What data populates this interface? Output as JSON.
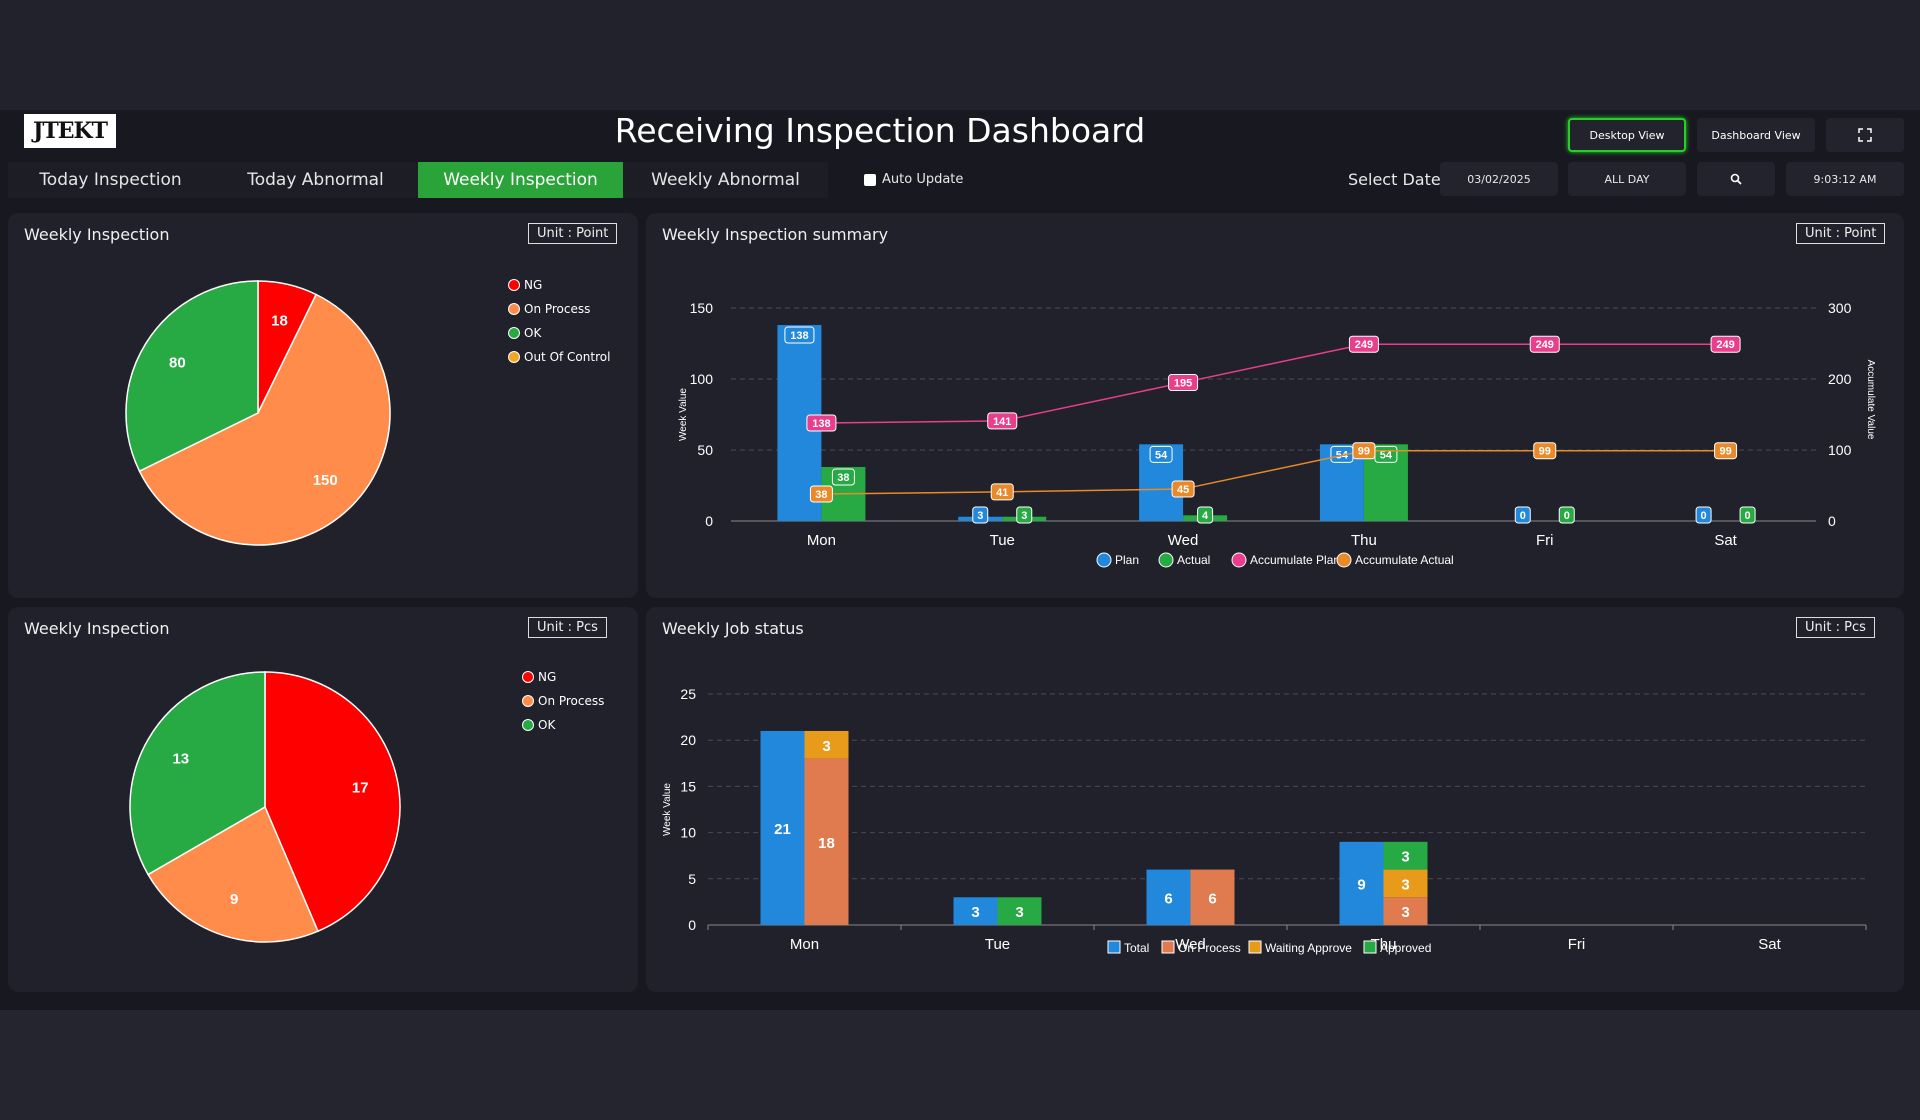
{
  "header": {
    "logo": "JTEKT",
    "title": "Receiving Inspection Dashboard",
    "desktop_view": "Desktop View",
    "dashboard_view": "Dashboard View",
    "fullscreen_icon": "fullscreen-icon"
  },
  "tabs": [
    "Today Inspection",
    "Today Abnormal",
    "Weekly Inspection",
    "Weekly Abnormal"
  ],
  "active_tab": 2,
  "auto_update": {
    "label": "Auto Update",
    "checked": false
  },
  "filters": {
    "select_date_label": "Select Date",
    "date": "03/02/2025",
    "shift": "ALL DAY",
    "search_icon": "search-icon",
    "time": "9:03:12 AM"
  },
  "colors": {
    "ng": "#ff0000",
    "on_process": "#ff8c4a",
    "ok": "#27a944",
    "out_of_control": "#f5a623",
    "plan": "#2188dc",
    "actual": "#27a944",
    "acc_plan": "#e83e8c",
    "acc_actual": "#e8892a",
    "job_on_process": "#e07b4f",
    "waiting": "#e89a1a",
    "active_tab": "#2aa339"
  },
  "panels": {
    "pie_point": {
      "title": "Weekly Inspection",
      "unit": "Unit : Point"
    },
    "summary": {
      "title": "Weekly Inspection summary",
      "unit": "Unit : Point"
    },
    "pie_pcs": {
      "title": "Weekly Inspection",
      "unit": "Unit : Pcs"
    },
    "job": {
      "title": "Weekly Job status",
      "unit": "Unit : Pcs"
    }
  },
  "chart_data": [
    {
      "type": "pie",
      "labels": [
        "NG",
        "On Process",
        "OK",
        "Out Of Control"
      ],
      "values": [
        18,
        150,
        80,
        0
      ]
    },
    {
      "type": "bar",
      "categories": [
        "Mon",
        "Tue",
        "Wed",
        "Thu",
        "Fri",
        "Sat"
      ],
      "series": [
        {
          "name": "Plan",
          "kind": "bar",
          "axis": "left",
          "values": [
            138,
            3,
            54,
            54,
            0,
            0
          ]
        },
        {
          "name": "Actual",
          "kind": "bar",
          "axis": "left",
          "values": [
            38,
            3,
            4,
            54,
            0,
            0
          ]
        },
        {
          "name": "Accumulate Plan",
          "kind": "line",
          "axis": "right",
          "values": [
            138,
            141,
            195,
            249,
            249,
            249
          ]
        },
        {
          "name": "Accumulate Actual",
          "kind": "line",
          "axis": "right",
          "values": [
            38,
            41,
            45,
            99,
            99,
            99
          ]
        }
      ],
      "ylabel": "Week Value",
      "y2label": "Accumulate Value",
      "ylim": [
        0,
        150
      ],
      "y2lim": [
        0,
        300
      ],
      "yticks": [
        0,
        50,
        100,
        150
      ],
      "y2ticks": [
        0,
        100,
        200,
        300
      ],
      "grid": true,
      "legend": "bottom"
    },
    {
      "type": "pie",
      "labels": [
        "NG",
        "On Process",
        "OK"
      ],
      "values": [
        17,
        9,
        13
      ]
    },
    {
      "type": "bar",
      "categories": [
        "Mon",
        "Tue",
        "Wed",
        "Thu",
        "Fri",
        "Sat"
      ],
      "series": [
        {
          "name": "Total",
          "stack": "a",
          "values": [
            21,
            3,
            6,
            9,
            0,
            0
          ]
        },
        {
          "name": "On Process",
          "stack": "b",
          "values": [
            18,
            0,
            6,
            3,
            0,
            0
          ]
        },
        {
          "name": "Waiting Approve",
          "stack": "b",
          "values": [
            3,
            0,
            0,
            3,
            0,
            0
          ]
        },
        {
          "name": "Approved",
          "stack": "b",
          "values": [
            0,
            3,
            0,
            3,
            0,
            0
          ]
        }
      ],
      "ylabel": "Week Value",
      "ylim": [
        0,
        25
      ],
      "yticks": [
        0,
        5,
        10,
        15,
        20,
        25
      ],
      "grid": true,
      "legend": "bottom"
    }
  ]
}
